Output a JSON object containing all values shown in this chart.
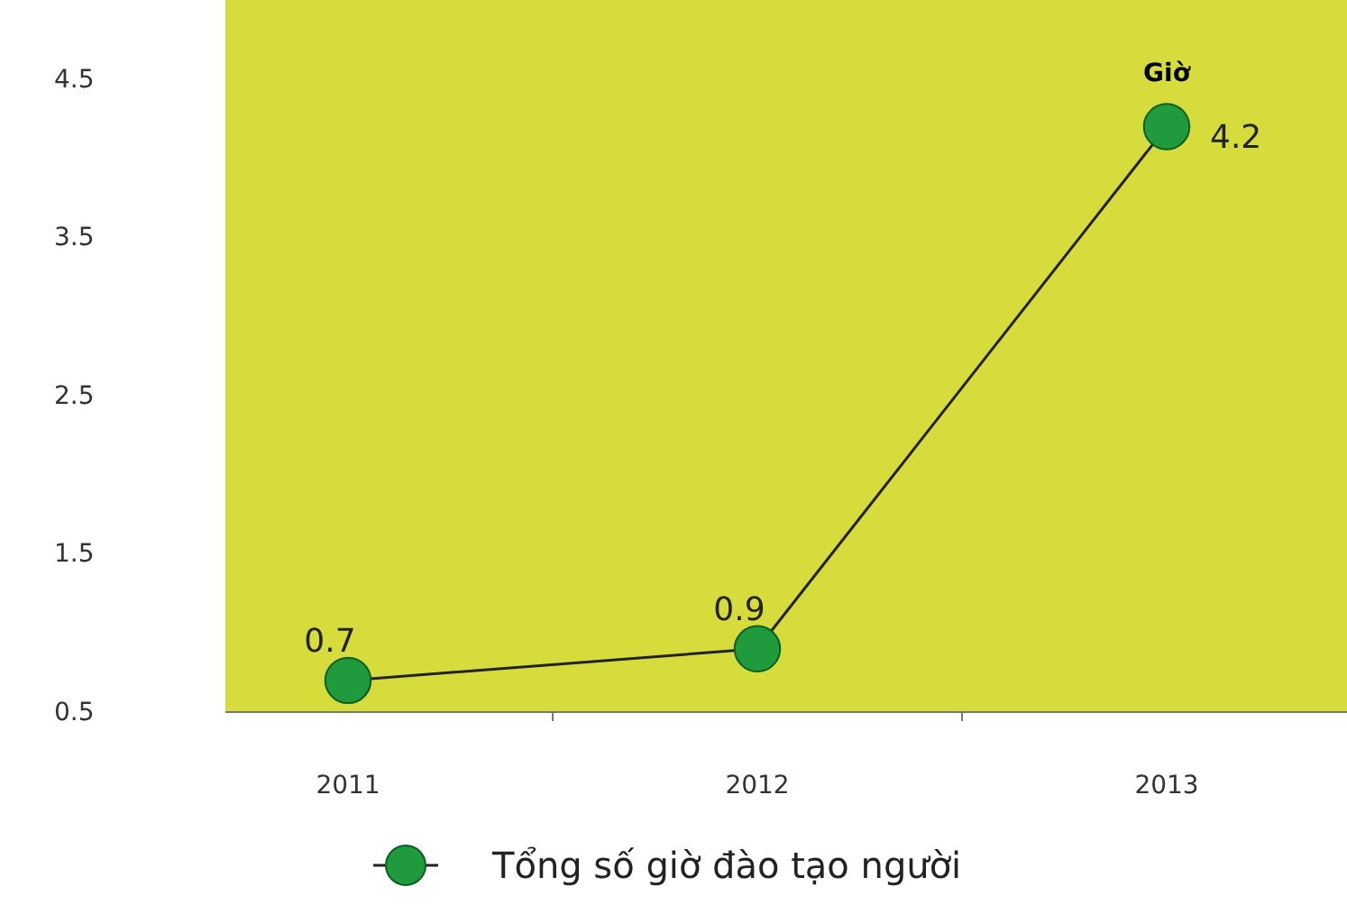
{
  "chart_data": {
    "type": "line",
    "ylabel": "Giờ",
    "categories": [
      "2011",
      "2012",
      "2013"
    ],
    "series": [
      {
        "name": "Tổng số giờ đào tạo người",
        "color": "#1f9a3c",
        "values": [
          0.7,
          0.9,
          4.2
        ]
      }
    ],
    "ylim": [
      0.5,
      5
    ],
    "yticks": [
      0.5,
      1.5,
      2.5,
      3.5,
      4.5
    ],
    "grid": false,
    "legend": "bottom",
    "marker": "circle",
    "data_labels": true
  }
}
